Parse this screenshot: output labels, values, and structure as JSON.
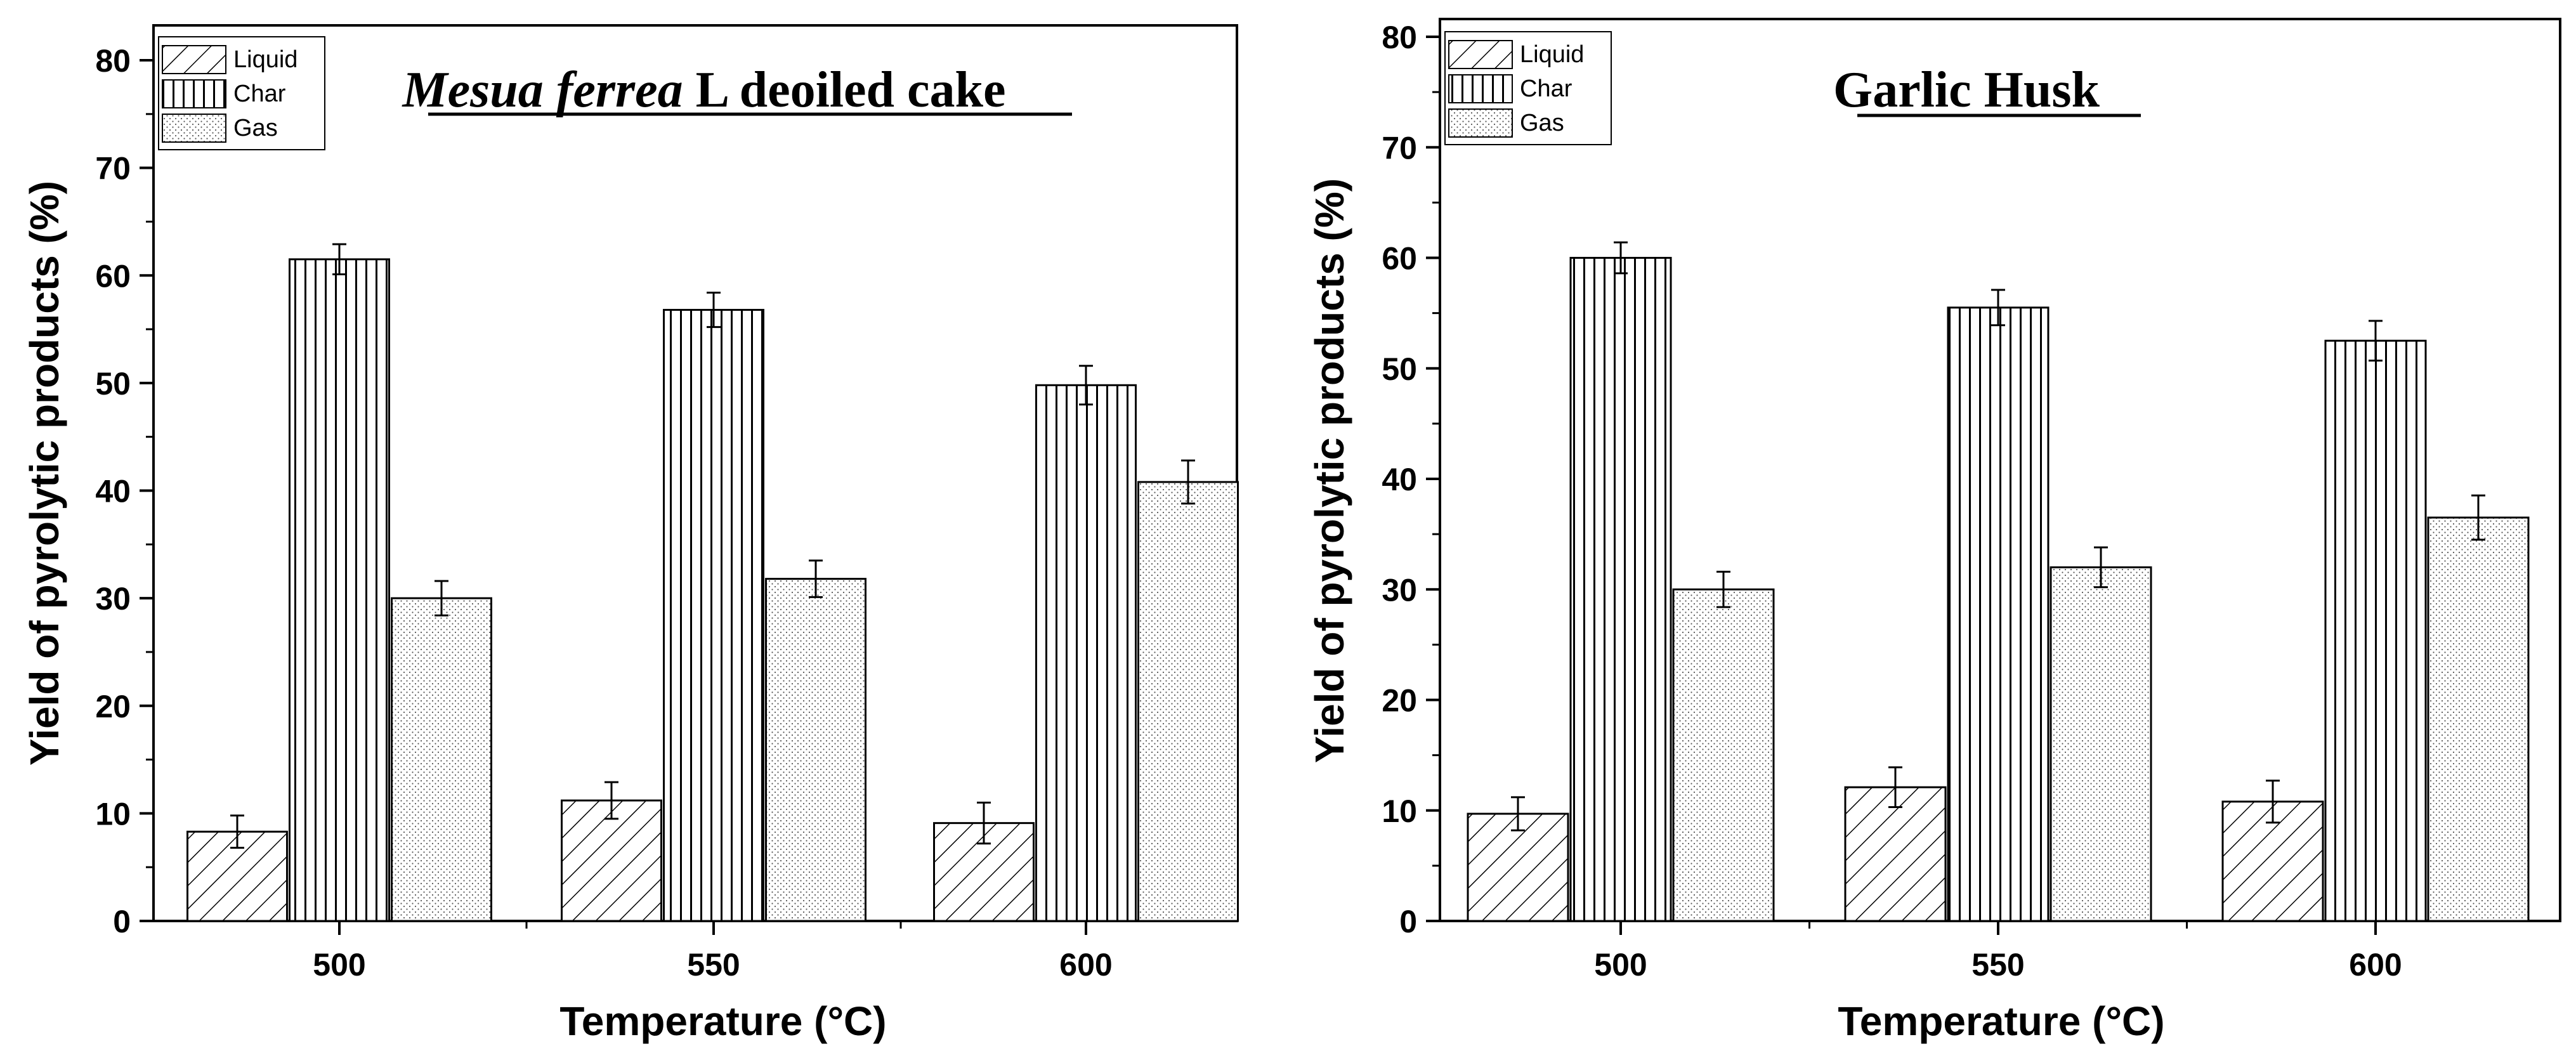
{
  "chart_data": [
    {
      "type": "bar",
      "title_italic": "Mesua ferrea",
      "title_rest": " L deoiled cake",
      "xlabel": "Temperature (°C)",
      "ylabel": "Yield of pyrolytic products (%)",
      "ylim": [
        0,
        80
      ],
      "yticks": [
        "0",
        "10",
        "20",
        "30",
        "40",
        "50",
        "60",
        "70",
        "80"
      ],
      "categories": [
        "500",
        "550",
        "600"
      ],
      "legend_position": "top-left",
      "series": [
        {
          "name": "Liquid",
          "pattern": "diagonal",
          "values": [
            8.3,
            11.2,
            9.1
          ],
          "errors": [
            1.5,
            1.7,
            1.9
          ]
        },
        {
          "name": "Char",
          "pattern": "vertical",
          "values": [
            61.5,
            56.8,
            49.8
          ],
          "errors": [
            1.4,
            1.6,
            1.8
          ]
        },
        {
          "name": "Gas",
          "pattern": "dotted",
          "values": [
            30.0,
            31.8,
            40.8
          ],
          "errors": [
            1.6,
            1.7,
            2.0
          ]
        }
      ]
    },
    {
      "type": "bar",
      "title_italic": "",
      "title_rest": "Garlic Husk",
      "xlabel": "Temperature (°C)",
      "ylabel": "Yield of pyrolytic products (%)",
      "ylim": [
        0,
        80
      ],
      "yticks": [
        "0",
        "10",
        "20",
        "30",
        "40",
        "50",
        "60",
        "70",
        "80"
      ],
      "categories": [
        "500",
        "550",
        "600"
      ],
      "legend_position": "top-left",
      "series": [
        {
          "name": "Liquid",
          "pattern": "diagonal",
          "values": [
            9.7,
            12.1,
            10.8
          ],
          "errors": [
            1.5,
            1.8,
            1.9
          ]
        },
        {
          "name": "Char",
          "pattern": "vertical",
          "values": [
            60.0,
            55.5,
            52.5
          ],
          "errors": [
            1.4,
            1.6,
            1.8
          ]
        },
        {
          "name": "Gas",
          "pattern": "dotted",
          "values": [
            30.0,
            32.0,
            36.5
          ],
          "errors": [
            1.6,
            1.8,
            2.0
          ]
        }
      ]
    }
  ]
}
